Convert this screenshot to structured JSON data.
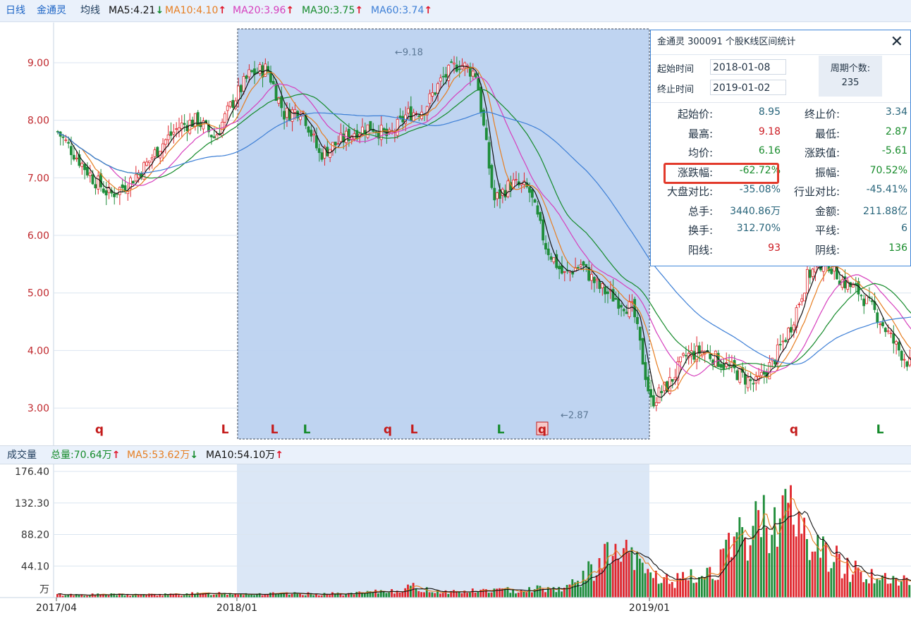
{
  "header": {
    "period": "日线",
    "stock_name": "金通灵",
    "ma_label": "均线",
    "ma": [
      {
        "label": "MA5:4.21",
        "trend": "down",
        "color": "#111111"
      },
      {
        "label": "MA10:4.10",
        "trend": "up",
        "color": "#e67e22"
      },
      {
        "label": "MA20:3.96",
        "trend": "up",
        "color": "#d63fbd"
      },
      {
        "label": "MA30:3.75",
        "trend": "up",
        "color": "#148a2a"
      },
      {
        "label": "MA60:3.74",
        "trend": "up",
        "color": "#3d7fd6"
      }
    ]
  },
  "volume_header": {
    "title": "成交量",
    "items": [
      {
        "label": "总量:70.64万",
        "trend": "up",
        "color": "#148a2a"
      },
      {
        "label": "MA5:53.62万",
        "trend": "down",
        "color": "#e67e22"
      },
      {
        "label": "MA10:54.10万",
        "trend": "up",
        "color": "#111111"
      }
    ]
  },
  "stats_panel": {
    "title": "金通灵  300091  个股K线区间统计",
    "start_label": "起始时间",
    "start_date": "2018-01-08",
    "end_label": "终止时间",
    "end_date": "2019-01-02",
    "period_label": "周期个数:",
    "period_count": "235",
    "rows": [
      {
        "l1": "起始价:",
        "v1": "8.95",
        "c1": "blue",
        "l2": "终止价:",
        "v2": "3.34",
        "c2": "blue"
      },
      {
        "l1": "最高:",
        "v1": "9.18",
        "c1": "red",
        "l2": "最低:",
        "v2": "2.87",
        "c2": "green"
      },
      {
        "l1": "均价:",
        "v1": "6.16",
        "c1": "green",
        "l2": "涨跌值:",
        "v2": "-5.61",
        "c2": "green"
      },
      {
        "l1": "涨跌幅:",
        "v1": "-62.72%",
        "c1": "green",
        "l2": "振幅:",
        "v2": "70.52%",
        "c2": "green"
      },
      {
        "l1": "大盘对比:",
        "v1": "-35.08%",
        "c1": "blue",
        "l2": "行业对比:",
        "v2": "-45.41%",
        "c2": "blue"
      },
      {
        "l1": "总手:",
        "v1": "3440.86万",
        "c1": "blue",
        "l2": "金额:",
        "v2": "211.88亿",
        "c2": "blue"
      },
      {
        "l1": "换手:",
        "v1": "312.70%",
        "c1": "blue",
        "l2": "平线:",
        "v2": "6",
        "c2": "blue"
      },
      {
        "l1": "阳线:",
        "v1": "93",
        "c1": "red",
        "l2": "阴线:",
        "v2": "136",
        "c2": "green"
      }
    ]
  },
  "chart_data": [
    {
      "type": "candlestick",
      "title": "",
      "y_ticks": [
        "9.00",
        "8.00",
        "7.00",
        "6.00",
        "5.00",
        "4.00",
        "3.00"
      ],
      "ylim": [
        2.45,
        9.6
      ],
      "x_ticks": [
        "2017/04",
        "2018/01",
        "2019/01"
      ],
      "selected_range": {
        "start": "2018-01-08",
        "end": "2019-01-02"
      },
      "annotations": [
        {
          "label": "←9.18",
          "x": "2018-05",
          "y": 9.18
        },
        {
          "label": "←2.87",
          "x": "2018-10",
          "y": 2.87
        }
      ],
      "signal_markers": [
        {
          "text": "q",
          "x": "2017-06",
          "color": "#c41b1b",
          "boxed": false
        },
        {
          "text": "L",
          "x": "2017-12",
          "color": "#c41b1b",
          "boxed": false
        },
        {
          "text": "L",
          "x": "2018-01",
          "color": "#c41b1b",
          "boxed": false
        },
        {
          "text": "L",
          "x": "2018-02",
          "color": "#148a2a",
          "boxed": false
        },
        {
          "text": "q",
          "x": "2018-04",
          "color": "#c41b1b",
          "boxed": false
        },
        {
          "text": "L",
          "x": "2018-05",
          "color": "#c41b1b",
          "boxed": false
        },
        {
          "text": "L",
          "x": "2018-08",
          "color": "#148a2a",
          "boxed": false
        },
        {
          "text": "q",
          "x": "2018-09",
          "color": "#c41b1b",
          "boxed": true
        },
        {
          "text": "q",
          "x": "2019-03",
          "color": "#c41b1b",
          "boxed": false
        },
        {
          "text": "L",
          "x": "2019-05",
          "color": "#148a2a",
          "boxed": false
        }
      ],
      "approx_close_path": [
        7.8,
        7.4,
        7.0,
        6.7,
        6.9,
        7.2,
        7.6,
        7.9,
        8.0,
        7.7,
        8.3,
        8.8,
        8.9,
        8.1,
        8.2,
        7.4,
        7.6,
        7.8,
        7.9,
        7.7,
        8.1,
        8.2,
        8.7,
        9.0,
        8.8,
        6.6,
        6.9,
        6.8,
        5.8,
        5.3,
        5.5,
        5.1,
        4.9,
        4.7,
        3.1,
        3.4,
        3.9,
        4.0,
        3.8,
        3.6,
        3.4,
        3.8,
        4.4,
        5.3,
        5.6,
        5.2,
        5.0,
        4.6,
        4.1,
        3.7
      ]
    },
    {
      "type": "bar",
      "title": "成交量",
      "y_ticks": [
        "176.40",
        "132.30",
        "88.20",
        "44.10",
        "万"
      ],
      "ylim": [
        0,
        176.4
      ],
      "unit": "万",
      "approx_ma10_path": [
        4,
        4,
        4,
        4,
        4,
        4,
        4,
        4,
        5,
        5,
        6,
        6,
        5,
        5,
        5,
        5,
        5,
        5,
        5,
        6,
        8,
        10,
        14,
        10,
        8,
        8,
        9,
        10,
        10,
        11,
        13,
        12,
        18,
        35,
        55,
        60,
        45,
        30,
        22,
        25,
        30,
        45,
        70,
        90,
        110,
        125,
        95,
        70,
        55,
        40,
        35,
        25,
        22,
        21
      ]
    }
  ],
  "colors": {
    "up": "#e0262d",
    "down": "#1f8d3a",
    "selection": "#bcd2f0"
  }
}
